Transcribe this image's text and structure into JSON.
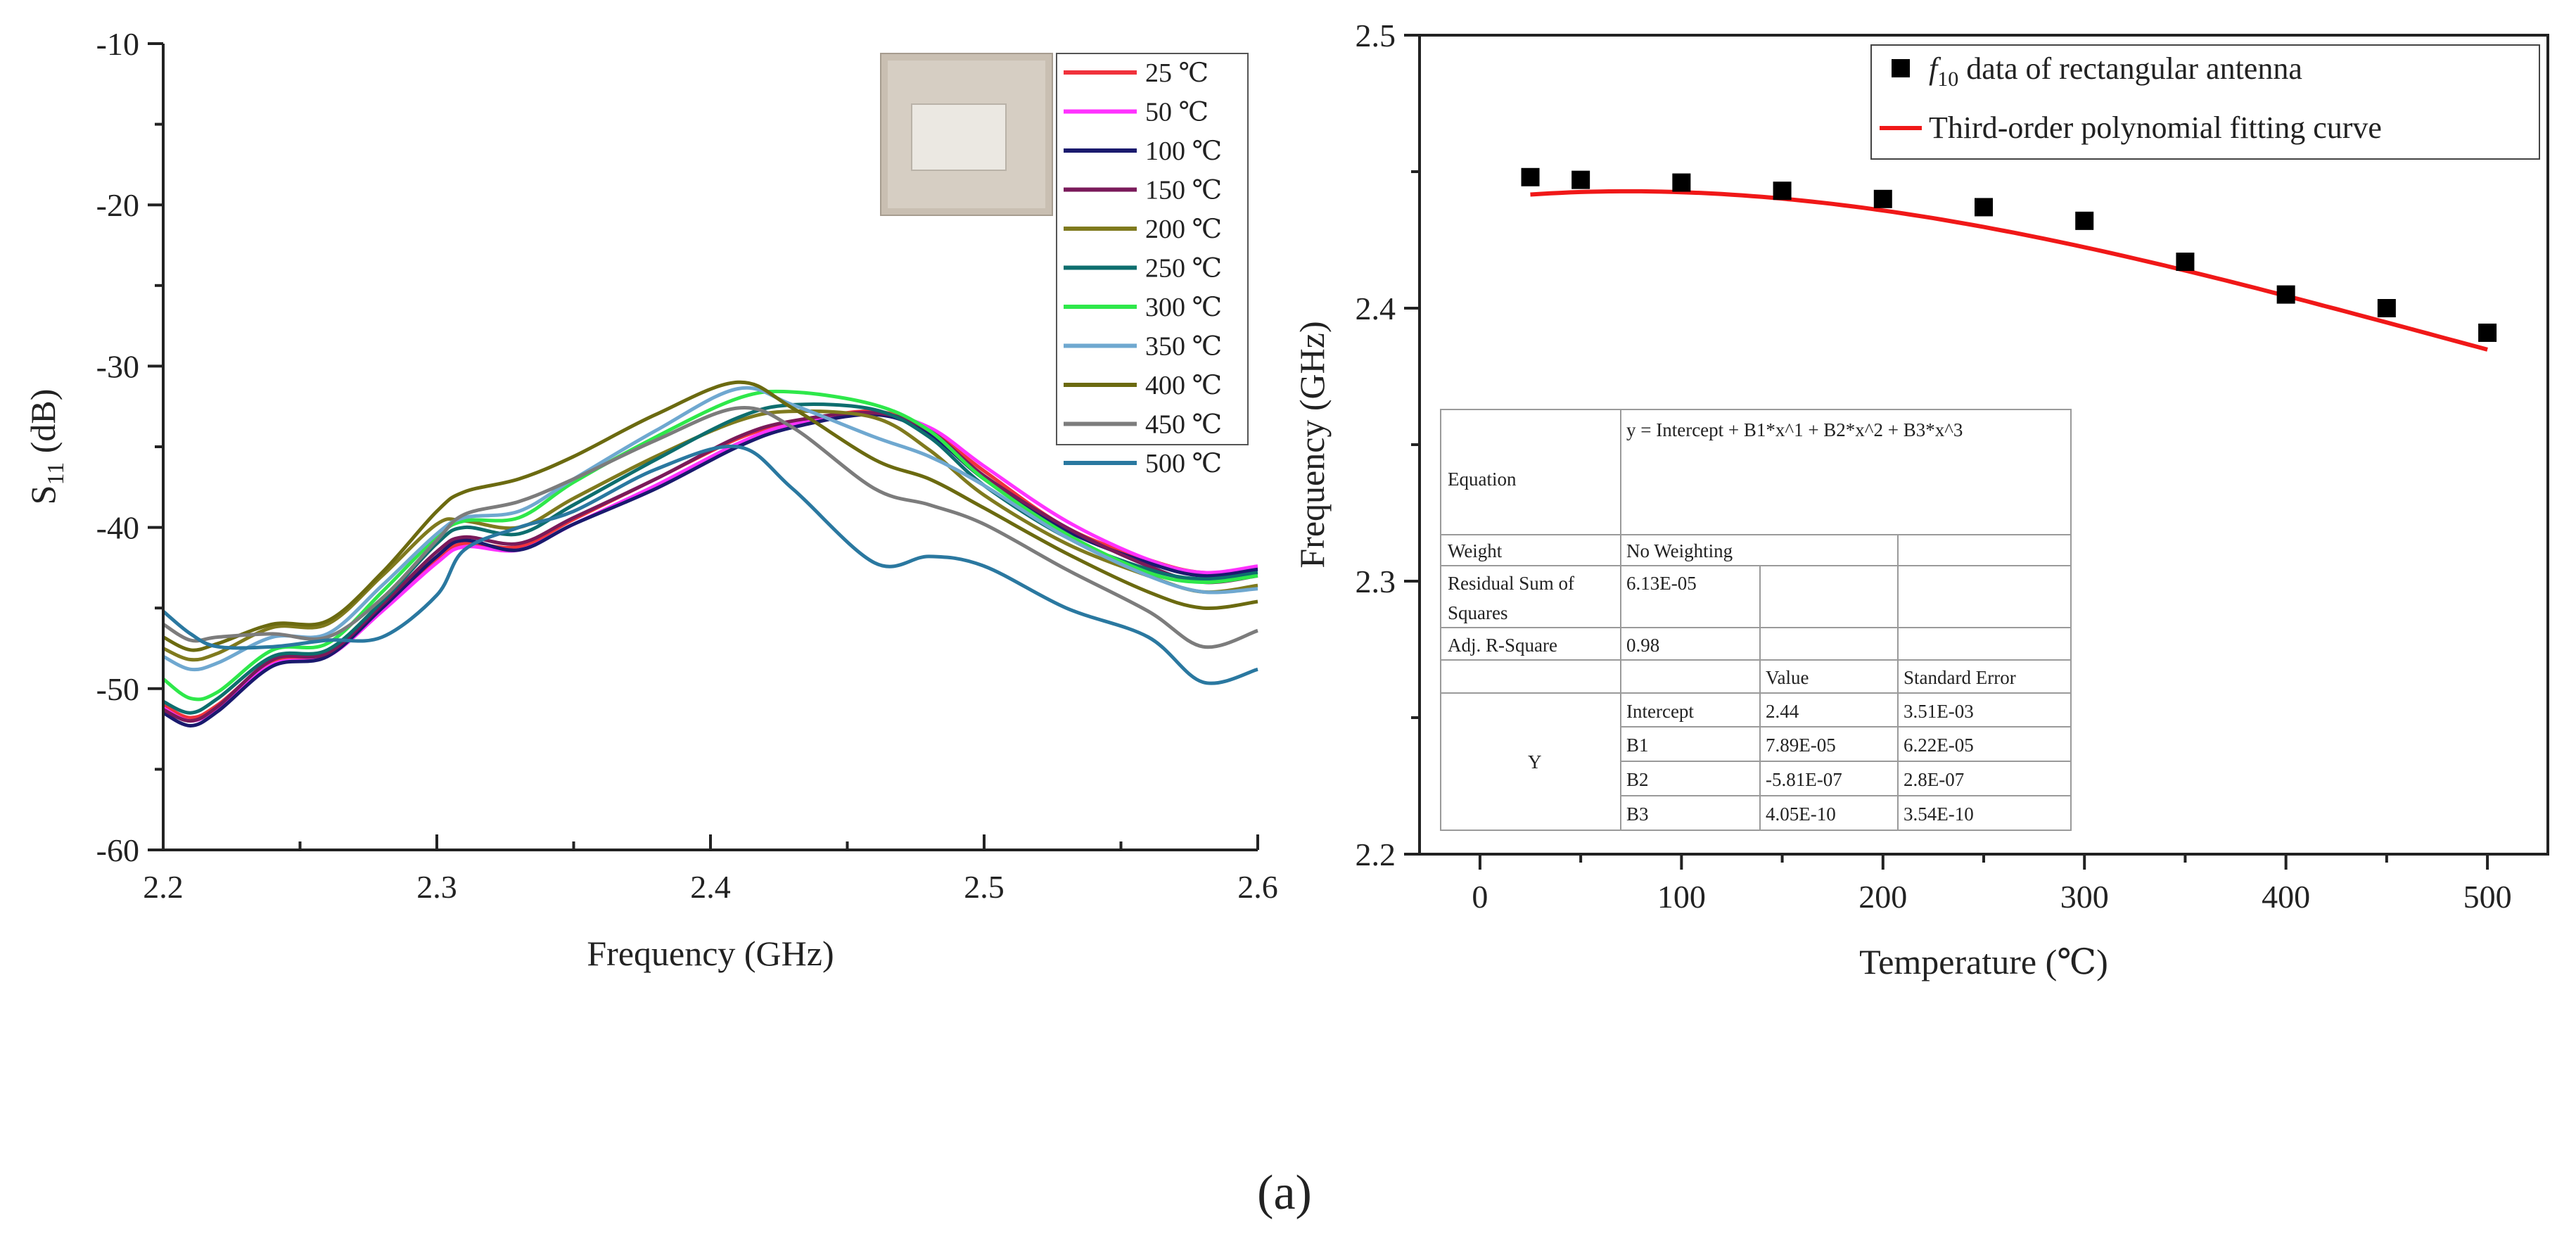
{
  "panel_label": "(a)",
  "chart_data": [
    {
      "type": "line",
      "title": "",
      "xlabel": "Frequency (GHz)",
      "ylabel": "S11 (dB)",
      "ylabel_main": "S",
      "ylabel_sub": "11",
      "ylabel_unit": " (dB)",
      "xlim": [
        2.2,
        2.6
      ],
      "ylim": [
        -60,
        -10
      ],
      "xticks": [
        2.2,
        2.3,
        2.4,
        2.5,
        2.6
      ],
      "xtick_labels": [
        "2.2",
        "2.3",
        "2.4",
        "2.5",
        "2.6"
      ],
      "yticks": [
        -60,
        -50,
        -40,
        -30,
        -20,
        -10
      ],
      "ytick_labels": [
        "-60",
        "-50",
        "-40",
        "-30",
        "-20",
        "-10"
      ],
      "legend_position": "top-right",
      "inset": "photo of rectangular patch antenna sample",
      "x": [
        2.2,
        2.21,
        2.22,
        2.24,
        2.26,
        2.28,
        2.3,
        2.31,
        2.33,
        2.35,
        2.38,
        2.41,
        2.43,
        2.46,
        2.48,
        2.5,
        2.53,
        2.56,
        2.58,
        2.6
      ],
      "series": [
        {
          "name": "25 ℃",
          "color": "#f0323c",
          "values": [
            -51.0,
            -51.8,
            -51.0,
            -48.3,
            -47.8,
            -45.0,
            -42.0,
            -41.0,
            -41.2,
            -39.5,
            -37.0,
            -34.5,
            -33.5,
            -32.8,
            -34.0,
            -36.5,
            -40.0,
            -42.0,
            -42.8,
            -42.5
          ]
        },
        {
          "name": "50 ℃",
          "color": "#ff32ff",
          "values": [
            -51.2,
            -52.0,
            -51.2,
            -48.5,
            -48.0,
            -45.2,
            -42.2,
            -41.2,
            -41.4,
            -39.8,
            -37.4,
            -34.8,
            -33.6,
            -33.0,
            -33.8,
            -36.2,
            -39.6,
            -42.0,
            -42.8,
            -42.4
          ]
        },
        {
          "name": "100 ℃",
          "color": "#1a1a6e",
          "values": [
            -51.5,
            -52.3,
            -51.4,
            -48.6,
            -48.0,
            -45.0,
            -41.8,
            -40.8,
            -41.4,
            -39.8,
            -37.6,
            -35.0,
            -33.8,
            -33.0,
            -34.2,
            -37.0,
            -40.2,
            -42.2,
            -43.0,
            -42.6
          ]
        },
        {
          "name": "150 ℃",
          "color": "#7a1a5a",
          "values": [
            -51.3,
            -52.0,
            -51.1,
            -48.2,
            -47.8,
            -44.8,
            -41.5,
            -40.6,
            -41.0,
            -39.4,
            -37.0,
            -34.4,
            -33.4,
            -32.9,
            -34.0,
            -36.8,
            -40.0,
            -42.4,
            -43.4,
            -43.0
          ]
        },
        {
          "name": "200 ℃",
          "color": "#7f7a1e",
          "values": [
            -47.5,
            -48.2,
            -47.8,
            -46.2,
            -46.0,
            -43.0,
            -39.8,
            -39.6,
            -40.0,
            -38.2,
            -35.6,
            -33.4,
            -32.8,
            -33.2,
            -35.2,
            -38.0,
            -41.0,
            -43.0,
            -44.0,
            -43.6
          ]
        },
        {
          "name": "250 ℃",
          "color": "#0d6e6e",
          "values": [
            -50.8,
            -51.5,
            -50.6,
            -48.0,
            -47.6,
            -44.6,
            -41.0,
            -40.0,
            -40.4,
            -38.6,
            -35.8,
            -33.2,
            -32.4,
            -32.7,
            -34.4,
            -37.4,
            -40.6,
            -42.6,
            -43.2,
            -42.8
          ]
        },
        {
          "name": "300 ℃",
          "color": "#2ee84a",
          "values": [
            -49.4,
            -50.6,
            -50.2,
            -47.6,
            -47.2,
            -44.0,
            -40.6,
            -39.6,
            -39.4,
            -37.2,
            -34.4,
            -32.0,
            -31.6,
            -32.4,
            -34.0,
            -37.0,
            -40.4,
            -42.8,
            -43.4,
            -43.0
          ]
        },
        {
          "name": "350 ℃",
          "color": "#6fa8d0",
          "values": [
            -48.0,
            -48.8,
            -48.4,
            -46.8,
            -46.6,
            -43.6,
            -40.4,
            -39.4,
            -39.0,
            -37.0,
            -34.0,
            -31.4,
            -32.4,
            -34.4,
            -35.6,
            -37.4,
            -40.6,
            -43.0,
            -44.0,
            -43.8
          ]
        },
        {
          "name": "400 ℃",
          "color": "#6b6a10",
          "values": [
            -46.8,
            -47.6,
            -47.2,
            -46.0,
            -45.8,
            -42.8,
            -39.0,
            -37.8,
            -37.0,
            -35.6,
            -33.0,
            -31.0,
            -32.6,
            -35.8,
            -37.0,
            -38.8,
            -41.6,
            -44.0,
            -45.0,
            -44.6
          ]
        },
        {
          "name": "450 ℃",
          "color": "#7c7c7c",
          "values": [
            -46.0,
            -47.0,
            -46.8,
            -46.6,
            -46.8,
            -44.4,
            -40.8,
            -39.2,
            -38.4,
            -37.0,
            -34.6,
            -32.6,
            -33.8,
            -37.6,
            -38.6,
            -39.8,
            -42.6,
            -45.2,
            -47.4,
            -46.4
          ]
        },
        {
          "name": "500 ℃",
          "color": "#2a78a0",
          "values": [
            -45.2,
            -46.6,
            -47.4,
            -47.4,
            -47.0,
            -46.8,
            -44.2,
            -41.4,
            -40.0,
            -39.0,
            -36.4,
            -35.0,
            -37.6,
            -42.2,
            -41.8,
            -42.4,
            -45.0,
            -46.8,
            -49.6,
            -48.8
          ]
        }
      ]
    },
    {
      "type": "scatter",
      "title": "",
      "xlabel": "Temperature (℃)",
      "ylabel": "Frequency (GHz)",
      "xlim": [
        -30,
        530
      ],
      "ylim": [
        2.2,
        2.5
      ],
      "xticks": [
        0,
        100,
        200,
        300,
        400,
        500
      ],
      "xtick_labels": [
        "0",
        "100",
        "200",
        "300",
        "400",
        "500"
      ],
      "yticks": [
        2.2,
        2.3,
        2.4,
        2.5
      ],
      "ytick_labels": [
        "2.2",
        "2.3",
        "2.4",
        "2.5"
      ],
      "legend_position": "top-right",
      "series": [
        {
          "name": "f10 data of rectangular antenna",
          "label_italic": "f",
          "label_sub": "10",
          "label_rest": " data of rectangular antenna",
          "color": "#000000",
          "x": [
            25,
            50,
            100,
            150,
            200,
            250,
            300,
            350,
            400,
            450,
            500
          ],
          "y": [
            2.448,
            2.447,
            2.446,
            2.443,
            2.44,
            2.437,
            2.432,
            2.417,
            2.405,
            2.4,
            2.391
          ]
        },
        {
          "name": "Third-order polynomial fitting curve",
          "color": "#f01818",
          "fit": {
            "intercept": 2.44,
            "b1": 7.89e-05,
            "b2": -5.81e-07,
            "b3": 4.05e-10
          },
          "x_range": [
            25,
            500
          ]
        }
      ],
      "fit_table": {
        "equation_label": "Equation",
        "equation": "y = Intercept + B1*x^1 + B2*x^2 + B3*x^3",
        "weight_label": "Weight",
        "weight": "No Weighting",
        "rss_label_1": "Residual Sum of",
        "rss_label_2": "Squares",
        "rss": "6.13E-05",
        "r2_label": "Adj. R-Square",
        "r2": "0.98",
        "value_header": "Value",
        "se_header": "Standard Error",
        "y_label": "Y",
        "rows": [
          {
            "param": "Intercept",
            "value": "2.44",
            "se": "3.51E-03"
          },
          {
            "param": "B1",
            "value": "7.89E-05",
            "se": "6.22E-05"
          },
          {
            "param": "B2",
            "value": "-5.81E-07",
            "se": "2.8E-07"
          },
          {
            "param": "B3",
            "value": "4.05E-10",
            "se": "3.54E-10"
          }
        ]
      }
    }
  ]
}
